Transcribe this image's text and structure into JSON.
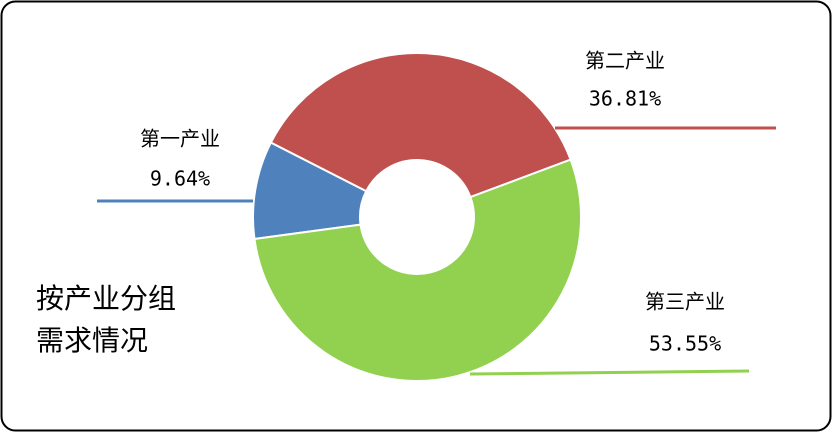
{
  "chart_data": {
    "type": "pie",
    "donut": true,
    "title": "按产业分组需求情况",
    "categories": [
      "第一产业",
      "第二产业",
      "第三产业"
    ],
    "values": [
      9.64,
      36.81,
      53.55
    ],
    "value_labels": [
      "9.64%",
      "36.81%",
      "53.55%"
    ],
    "colors": [
      "#4f81bd",
      "#c0504d",
      "#92d050"
    ]
  }
}
